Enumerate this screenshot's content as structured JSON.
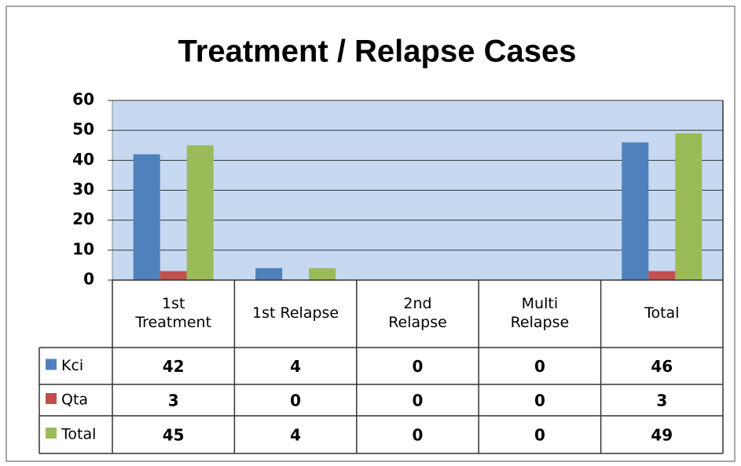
{
  "chart_data": {
    "type": "bar",
    "title": "Treatment / Relapse Cases",
    "categories": [
      "1st Treatment",
      "1st Relapse",
      "2nd Relapse",
      "Multi Relapse",
      "Total"
    ],
    "series": [
      {
        "name": "Kci",
        "color": "#4f81bd",
        "values": [
          42,
          4,
          0,
          0,
          46
        ]
      },
      {
        "name": "Qta",
        "color": "#c0504d",
        "values": [
          3,
          0,
          0,
          0,
          3
        ]
      },
      {
        "name": "Total",
        "color": "#9bbb59",
        "values": [
          45,
          4,
          0,
          0,
          49
        ]
      }
    ],
    "ylim": [
      0,
      60
    ],
    "yticks": [
      0,
      10,
      20,
      30,
      40,
      50,
      60
    ],
    "grid": true
  }
}
